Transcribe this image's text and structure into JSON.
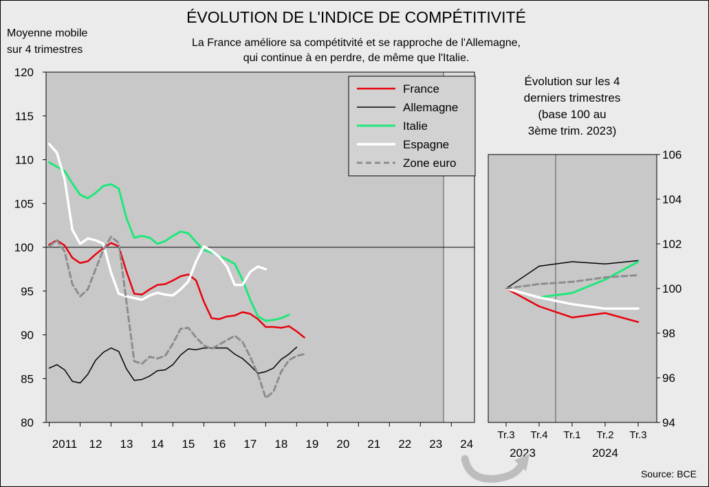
{
  "title": "ÉVOLUTION DE L'INDICE DE COMPÉTITIVITÉ",
  "subtitle_line1": "La France améliore sa compétitvité et se rapproche de l'Allemagne,",
  "subtitle_line2": "qui continue à en perdre, de même que l'Italie.",
  "left_axis_label_line1": "Moyenne mobile",
  "left_axis_label_line2": "sur 4 trimestres",
  "right_panel_title": [
    "Évolution sur les 4",
    "derniers trimestres",
    "(base 100 au",
    "3ème trim. 2023)"
  ],
  "source": "Source: BCE",
  "colors": {
    "background": "#ebebeb",
    "plot_bg": "#c8c8c8",
    "shaded_bg": "#dcdcdc",
    "France": "#e8000b",
    "Allemagne": "#000000",
    "Italie": "#1ee87a",
    "Espagne": "#ffffff",
    "Zone euro": "#8c8c8c"
  },
  "chart_data": [
    {
      "type": "line",
      "title": "",
      "xlabel": "",
      "ylabel": "Moyenne mobile sur 4 trimestres",
      "ylim": [
        80,
        120
      ],
      "yticks": [
        80,
        85,
        90,
        95,
        100,
        105,
        110,
        115,
        120
      ],
      "x_tick_labels": [
        "2011",
        "12",
        "13",
        "14",
        "15",
        "16",
        "17",
        "18",
        "19",
        "20",
        "21",
        "22",
        "23",
        "24"
      ],
      "x_start": 2011.0,
      "x_step": 0.25,
      "x_range": [
        2010.9,
        2024.75
      ],
      "shaded_from": 2023.75,
      "grid": false,
      "reference_line": 100,
      "legend_position": "top-right",
      "series": [
        {
          "name": "France",
          "color": "#e8000b",
          "width": 2.5,
          "dash": "",
          "values": [
            100.3,
            100.8,
            100.2,
            98.8,
            98.2,
            98.4,
            99.2,
            99.9,
            100.5,
            100.1,
            97.2,
            94.7,
            94.6,
            95.2,
            95.7,
            95.8,
            96.2,
            96.7,
            96.9,
            96.2,
            93.8,
            91.9,
            91.8,
            92.1,
            92.2,
            92.6,
            92.4,
            91.8,
            90.9,
            90.9,
            90.8,
            91.0,
            90.4,
            89.7
          ]
        },
        {
          "name": "Allemagne",
          "color": "#000000",
          "width": 1.5,
          "dash": "",
          "values": [
            86.2,
            86.6,
            86.0,
            84.7,
            84.5,
            85.5,
            87.1,
            88.0,
            88.5,
            88.1,
            86.1,
            84.8,
            84.9,
            85.3,
            85.9,
            86.0,
            86.6,
            87.7,
            88.4,
            88.3,
            88.5,
            88.5,
            88.5,
            88.5,
            87.8,
            87.3,
            86.5,
            85.6,
            85.8,
            86.2,
            87.2,
            87.8,
            88.6
          ]
        },
        {
          "name": "Italie",
          "color": "#1ee87a",
          "width": 3,
          "dash": "",
          "values": [
            109.7,
            109.2,
            108.7,
            107.3,
            106.0,
            105.6,
            106.2,
            107.0,
            107.2,
            106.7,
            103.3,
            101.1,
            101.3,
            101.1,
            100.4,
            100.7,
            101.3,
            101.8,
            101.6,
            100.6,
            99.7,
            99.4,
            99.0,
            98.6,
            98.1,
            96.3,
            94.0,
            92.1,
            91.6,
            91.7,
            91.9,
            92.3
          ]
        },
        {
          "name": "Espagne",
          "color": "#ffffff",
          "width": 3.5,
          "dash": "",
          "values": [
            111.8,
            110.8,
            107.8,
            102.0,
            100.4,
            101.0,
            100.8,
            100.4,
            97.1,
            94.7,
            94.4,
            94.2,
            94.0,
            94.5,
            94.8,
            94.6,
            94.5,
            95.2,
            96.1,
            98.4,
            100.1,
            99.6,
            98.9,
            97.8,
            95.7,
            95.7,
            97.2,
            97.8,
            97.5
          ]
        },
        {
          "name": "Zone euro",
          "color": "#8c8c8c",
          "width": 3,
          "dash": "8 5",
          "values": [
            100.1,
            100.8,
            99.5,
            95.8,
            94.4,
            95.2,
            97.5,
            99.7,
            101.2,
            100.5,
            93.7,
            87.0,
            86.7,
            87.5,
            87.3,
            87.6,
            89.0,
            90.7,
            90.8,
            89.7,
            88.8,
            88.4,
            88.9,
            89.4,
            89.9,
            89.2,
            87.5,
            85.5,
            82.8,
            83.5,
            85.8,
            87.1,
            87.6,
            87.8
          ]
        }
      ]
    },
    {
      "type": "line",
      "title": "Évolution sur les 4 derniers trimestres (base 100 au 3ème trim. 2023)",
      "categories": [
        "Tr.3",
        "Tr.4",
        "Tr.1",
        "Tr.2",
        "Tr.3"
      ],
      "year_labels": [
        "2023",
        "2024"
      ],
      "ylim": [
        94,
        106
      ],
      "yticks": [
        94,
        96,
        98,
        100,
        102,
        104,
        106
      ],
      "y_axis_side": "right",
      "series": [
        {
          "name": "France",
          "color": "#e8000b",
          "width": 2.5,
          "dash": "",
          "values": [
            100,
            99.2,
            98.7,
            98.9,
            98.5
          ]
        },
        {
          "name": "Allemagne",
          "color": "#000000",
          "width": 1.5,
          "dash": "",
          "values": [
            100,
            101.0,
            101.2,
            101.1,
            101.25
          ]
        },
        {
          "name": "Italie",
          "color": "#1ee87a",
          "width": 3,
          "dash": "",
          "values": [
            100,
            99.6,
            99.8,
            100.4,
            101.2
          ]
        },
        {
          "name": "Espagne",
          "color": "#ffffff",
          "width": 3.5,
          "dash": "",
          "values": [
            100,
            99.6,
            99.3,
            99.1,
            99.1
          ]
        },
        {
          "name": "Zone euro",
          "color": "#8c8c8c",
          "width": 3,
          "dash": "8 5",
          "values": [
            100,
            100.2,
            100.3,
            100.5,
            100.6
          ]
        }
      ]
    }
  ]
}
